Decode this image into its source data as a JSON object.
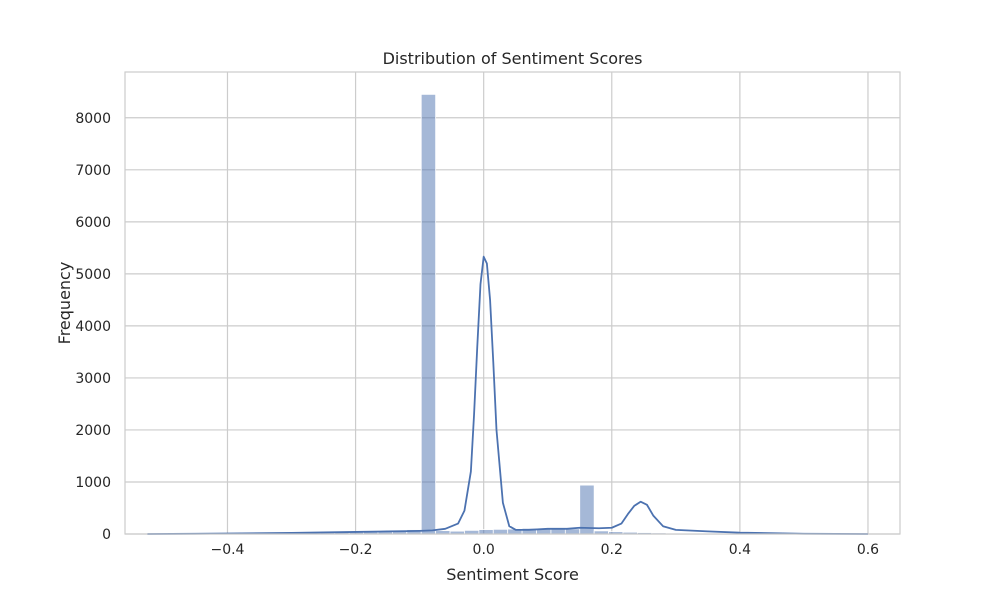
{
  "chart_data": {
    "type": "bar",
    "title": "Distribution of Sentiment Scores",
    "xlabel": "Sentiment Score",
    "ylabel": "Frequency",
    "xlim": [
      -0.56,
      0.65
    ],
    "ylim": [
      0,
      8880
    ],
    "grid": true,
    "xticks": [
      -0.4,
      -0.2,
      0.0,
      0.2,
      0.4,
      0.6
    ],
    "xtick_labels": [
      "−0.4",
      "−0.2",
      "0.0",
      "0.2",
      "0.4",
      "0.6"
    ],
    "yticks": [
      0,
      1000,
      2000,
      3000,
      4000,
      5000,
      6000,
      7000,
      8000
    ],
    "ytick_labels": [
      "0",
      "1000",
      "2000",
      "3000",
      "4000",
      "5000",
      "6000",
      "7000",
      "8000"
    ],
    "bins": {
      "start": -0.525,
      "width": 0.0225,
      "counts": [
        5,
        4,
        4,
        3,
        5,
        6,
        8,
        10,
        12,
        15,
        18,
        22,
        25,
        30,
        35,
        45,
        55,
        70,
        85,
        8450,
        65,
        55,
        70,
        85,
        90,
        95,
        110,
        100,
        95,
        100,
        940,
        60,
        45,
        35,
        28,
        22,
        18,
        14,
        10,
        8,
        6,
        5,
        4,
        3,
        3,
        2,
        2,
        2,
        2,
        2
      ],
      "color": "#4c72b0",
      "opacity": 0.5
    },
    "kde": {
      "color": "#4c72b0",
      "x": [
        -0.525,
        -0.45,
        -0.4,
        -0.3,
        -0.25,
        -0.2,
        -0.15,
        -0.12,
        -0.1,
        -0.08,
        -0.06,
        -0.04,
        -0.03,
        -0.02,
        -0.015,
        -0.01,
        -0.005,
        0.0,
        0.005,
        0.01,
        0.015,
        0.02,
        0.03,
        0.04,
        0.05,
        0.07,
        0.1,
        0.13,
        0.15,
        0.18,
        0.2,
        0.215,
        0.225,
        0.235,
        0.245,
        0.255,
        0.265,
        0.28,
        0.3,
        0.35,
        0.4,
        0.5,
        0.6
      ],
      "y": [
        0,
        5,
        10,
        20,
        30,
        40,
        50,
        55,
        60,
        70,
        100,
        200,
        450,
        1200,
        2300,
        3600,
        4800,
        5330,
        5200,
        4500,
        3300,
        2000,
        600,
        150,
        80,
        80,
        100,
        100,
        120,
        110,
        120,
        200,
        380,
        540,
        620,
        560,
        350,
        150,
        80,
        50,
        25,
        5,
        0
      ]
    }
  }
}
